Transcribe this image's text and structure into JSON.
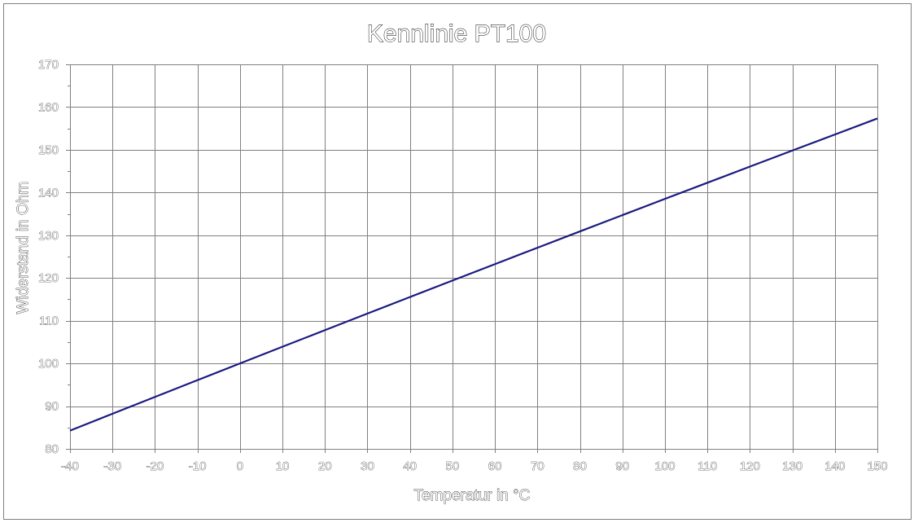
{
  "chart_data": {
    "type": "line",
    "title": "Kennlinie PT100",
    "xlabel": "Temperatur in °C",
    "ylabel": "Widerstand in Ohm",
    "xlim": [
      -40,
      150
    ],
    "ylim": [
      80,
      170
    ],
    "x_ticks": [
      -40,
      -30,
      -20,
      -10,
      0,
      10,
      20,
      30,
      40,
      50,
      60,
      70,
      80,
      90,
      100,
      110,
      120,
      130,
      140,
      150
    ],
    "y_ticks": [
      80,
      90,
      100,
      110,
      120,
      130,
      140,
      150,
      160,
      170
    ],
    "grid": true,
    "legend": "none",
    "colors": {
      "line": "#1a1a80",
      "grid": "#808080",
      "frame": "#808080",
      "background": "#ffffff"
    },
    "series": [
      {
        "x": [
          -40,
          -30,
          -20,
          -10,
          0,
          10,
          20,
          30,
          40,
          50,
          60,
          70,
          80,
          90,
          100,
          110,
          120,
          130,
          140,
          150
        ],
        "values": [
          84.27,
          88.22,
          92.16,
          96.09,
          100.0,
          103.9,
          107.79,
          111.67,
          115.54,
          119.4,
          123.24,
          127.08,
          130.9,
          134.71,
          138.51,
          142.29,
          146.07,
          149.83,
          153.58,
          157.33
        ]
      }
    ]
  }
}
